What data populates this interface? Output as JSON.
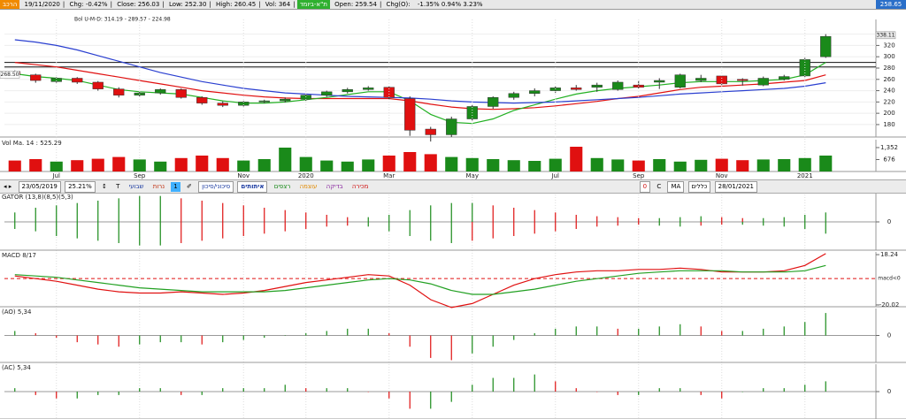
{
  "header": {
    "tag": "הרכב",
    "date": "19/11/2020",
    "chg": "Chg: -0.42%",
    "close": "Close: 256.03",
    "low": "Low: 252.30",
    "high": "High: 260.45",
    "vol": "Vol: 364",
    "index_tag": "ת\"א-ביומד",
    "open": "Open: 259.54",
    "chgo": "Chg(O):",
    "changes": "-1.35% 0.94% 3.23%",
    "last": "258.65"
  },
  "toolbar": {
    "nav": "◂ ▸",
    "start_date": "23/05/2019",
    "zoom": "25.21%",
    "arrows": "↕",
    "text_tool": "T",
    "period": "שבועי",
    "style": "נרות",
    "count": "1",
    "pen": "✐",
    "risk": "סיכוני/סיכון",
    "signals": "איתותים",
    "streaks": "רצפים",
    "strength": "עוצמה",
    "test": "בדיקה",
    "sell": "מכירה",
    "zero": "0",
    "c": "C",
    "ma": "MA",
    "rules": "כללים",
    "end_date": "28/01/2021"
  },
  "chart_data": [
    {
      "type": "candlestick",
      "subtitle": "Bol U-M-D: 314.19 - 289.57 - 224.98",
      "up_color": "#1a8a1a",
      "down_color": "#e01010",
      "categories": [
        null,
        null,
        "Jul",
        null,
        null,
        null,
        "Sep",
        null,
        null,
        null,
        null,
        "Nov",
        null,
        null,
        "2020",
        null,
        null,
        null,
        "Mar",
        null,
        null,
        null,
        "May",
        null,
        null,
        null,
        "Jul",
        null,
        null,
        null,
        "Sep",
        null,
        null,
        null,
        "Nov",
        null,
        null,
        null,
        "2021",
        null
      ],
      "open": [
        274,
        268,
        256,
        262,
        255,
        243,
        232,
        236,
        242,
        228,
        218,
        214,
        220,
        222,
        225,
        232,
        238,
        242,
        246,
        226,
        172,
        162,
        190,
        212,
        228,
        235,
        240,
        245,
        246,
        242,
        250,
        255,
        246,
        258,
        266,
        260,
        250,
        260,
        266,
        300
      ],
      "high": [
        276,
        270,
        264,
        264,
        257,
        246,
        238,
        244,
        244,
        230,
        221,
        222,
        224,
        228,
        234,
        240,
        245,
        248,
        248,
        230,
        176,
        194,
        215,
        230,
        238,
        244,
        248,
        250,
        254,
        258,
        258,
        262,
        270,
        268,
        267,
        262,
        265,
        268,
        298,
        340
      ],
      "low": [
        264,
        254,
        254,
        252,
        240,
        228,
        229,
        233,
        226,
        215,
        211,
        212,
        218,
        219,
        222,
        229,
        235,
        240,
        224,
        160,
        150,
        158,
        186,
        208,
        224,
        230,
        236,
        240,
        238,
        240,
        244,
        243,
        244,
        255,
        250,
        249,
        248,
        258,
        264,
        298
      ],
      "close": [
        268,
        258,
        262,
        255,
        243,
        232,
        236,
        242,
        228,
        218,
        214,
        220,
        222,
        225,
        232,
        238,
        242,
        245,
        228,
        170,
        162,
        190,
        212,
        228,
        235,
        240,
        245,
        242,
        250,
        255,
        246,
        258,
        268,
        262,
        252,
        258,
        262,
        265,
        295,
        336
      ],
      "series": [
        {
          "color": "#e01010",
          "values": [
            290,
            286,
            282,
            276,
            270,
            264,
            258,
            252,
            246,
            240,
            236,
            232,
            229,
            227,
            226,
            226,
            226,
            226,
            226,
            222,
            216,
            211,
            208,
            207,
            208,
            210,
            213,
            217,
            221,
            226,
            230,
            236,
            242,
            246,
            248,
            250,
            252,
            255,
            258,
            268
          ]
        },
        {
          "color": "#22b022",
          "values": [
            270,
            265,
            262,
            258,
            250,
            242,
            238,
            236,
            234,
            228,
            222,
            218,
            218,
            220,
            224,
            228,
            233,
            238,
            238,
            222,
            198,
            184,
            182,
            190,
            205,
            215,
            225,
            234,
            240,
            244,
            247,
            250,
            254,
            256,
            256,
            256,
            258,
            260,
            268,
            290
          ]
        },
        {
          "color": "#2a3fd0",
          "values": [
            330,
            326,
            320,
            312,
            302,
            292,
            282,
            272,
            264,
            256,
            250,
            244,
            240,
            236,
            234,
            232,
            230,
            229,
            228,
            227,
            225,
            222,
            220,
            219,
            218,
            219,
            220,
            222,
            224,
            226,
            228,
            231,
            234,
            236,
            238,
            240,
            242,
            244,
            248,
            254
          ]
        }
      ],
      "levels": [
        290,
        282
      ],
      "price_tags": [
        {
          "value": 268.5,
          "label": "268.50",
          "side": "left"
        },
        {
          "value": 338.11,
          "label": "338.11",
          "side": "right"
        }
      ],
      "ylim": [
        158,
        366
      ],
      "yticks": [
        180,
        200,
        220,
        240,
        260,
        280,
        300,
        320,
        340
      ],
      "grid": true
    },
    {
      "type": "volume",
      "title": "Vol Ma. 14 : 525.29",
      "values": [
        620,
        700,
        560,
        640,
        720,
        820,
        680,
        560,
        760,
        900,
        760,
        620,
        700,
        1350,
        820,
        620,
        560,
        680,
        900,
        1100,
        980,
        820,
        760,
        700,
        640,
        600,
        720,
        1400,
        760,
        680,
        620,
        700,
        560,
        660,
        720,
        640,
        680,
        700,
        760,
        900
      ],
      "ylim": [
        0,
        1800
      ],
      "yticks": [
        676,
        {
          "value": 1352,
          "label": "1,352"
        }
      ]
    },
    {
      "type": "gator",
      "title": "GATOR (13,8)(8,5)(5,3)",
      "up_color": "#1a8a1a",
      "down_color": "#e01010",
      "upper": [
        2,
        3,
        3.5,
        4,
        4.5,
        5,
        5.5,
        5.5,
        5,
        4.5,
        4,
        3.5,
        3,
        2.5,
        2,
        1.5,
        1,
        1,
        1.5,
        2.5,
        3.5,
        4,
        4,
        3.5,
        3,
        2.5,
        2,
        1.5,
        1.2,
        1,
        0.8,
        0.8,
        1,
        1.2,
        1,
        0.8,
        0.8,
        1,
        1.5,
        2
      ],
      "lower": [
        -1.5,
        -2,
        -3,
        -3.5,
        -4,
        -4.5,
        -5,
        -5,
        -4.5,
        -4,
        -3.5,
        -3,
        -2.5,
        -2,
        -1.5,
        -1,
        -0.8,
        -1,
        -2,
        -3,
        -4,
        -4.5,
        -4,
        -3.5,
        -3,
        -2.5,
        -2,
        -1.5,
        -1,
        -0.8,
        -0.6,
        -0.8,
        -1,
        -0.8,
        -0.6,
        -0.6,
        -0.8,
        -1,
        -1.5,
        -2.5
      ],
      "ylim": [
        -6,
        6
      ],
      "yticks": [
        0
      ]
    },
    {
      "type": "line",
      "title": "MACD 8/17",
      "series": [
        {
          "color": "#e01010",
          "values": [
            2,
            0,
            -2,
            -5,
            -8,
            -10,
            -11,
            -11,
            -10,
            -11,
            -12,
            -11,
            -9,
            -6,
            -3,
            -1,
            1,
            3,
            2,
            -5,
            -16,
            -22,
            -19,
            -12,
            -5,
            0,
            3,
            5,
            6,
            6,
            7,
            7,
            8,
            7,
            5,
            5,
            5,
            6,
            10,
            19
          ]
        },
        {
          "color": "#22a022",
          "values": [
            3,
            2,
            1,
            -1,
            -3,
            -5,
            -7,
            -8,
            -9,
            -10,
            -10,
            -10,
            -10,
            -9,
            -7,
            -5,
            -3,
            -1,
            0,
            -1,
            -4,
            -9,
            -12,
            -12,
            -10,
            -8,
            -5,
            -2,
            0,
            2,
            4,
            5,
            6,
            6,
            6,
            5,
            5,
            5,
            6,
            10
          ]
        }
      ],
      "reference": {
        "value": 0,
        "label": "macd<0",
        "color": "#e01010"
      },
      "ylim": [
        -21.4,
        20.3
      ],
      "yticks": [
        18.24,
        -20.02
      ]
    },
    {
      "type": "oscillator",
      "title": "(AO) 5,34",
      "up_color": "#1a8a1a",
      "down_color": "#e01010",
      "values": [
        2,
        1,
        -1,
        -3,
        -4,
        -5,
        -4,
        -3,
        -3,
        -4,
        -3,
        -2,
        -1,
        0,
        1,
        2,
        3,
        3,
        1,
        -5,
        -10,
        -11,
        -8,
        -5,
        -2,
        1,
        3,
        4,
        4,
        3,
        3,
        4,
        5,
        4,
        2,
        2,
        3,
        4,
        6,
        10
      ],
      "ylim": [
        -12,
        12
      ],
      "yticks": [
        0
      ]
    },
    {
      "type": "oscillator",
      "title": "(AC) 5,34",
      "up_color": "#1a8a1a",
      "down_color": "#e01010",
      "values": [
        1,
        -1,
        -2,
        -2,
        -1,
        -1,
        1,
        1,
        -1,
        -1,
        1,
        1,
        1,
        2,
        1,
        1,
        1,
        0,
        -2,
        -5,
        -5,
        -3,
        2,
        4,
        4,
        5,
        3,
        1,
        0,
        -1,
        -1,
        1,
        1,
        -1,
        -2,
        0,
        1,
        1,
        2,
        3
      ],
      "ylim": [
        -8,
        8
      ],
      "yticks": [
        0
      ]
    }
  ]
}
